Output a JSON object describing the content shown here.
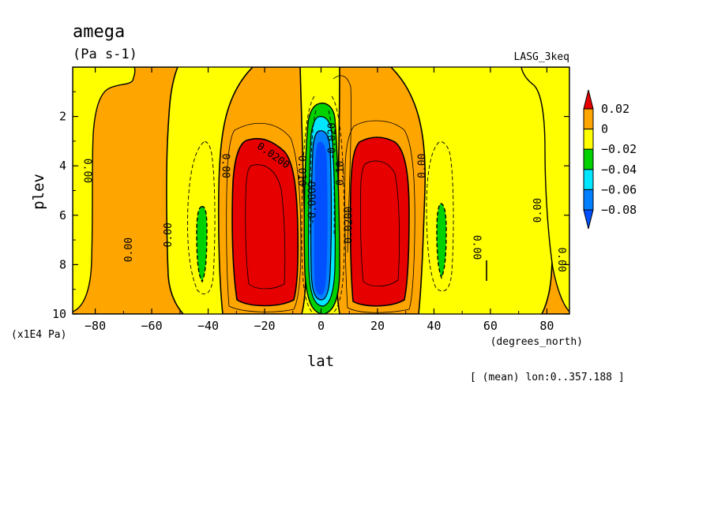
{
  "header": {
    "title": "amega",
    "units": "(Pa s-1)",
    "model": "LASG_3keq"
  },
  "footer": {
    "note": "[ (mean) lon:0..357.188 ]"
  },
  "chart_data": {
    "type": "heatmap",
    "title": "amega",
    "subtitle": "(Pa s-1)",
    "xlabel": "lat",
    "x_units": "(degrees_north)",
    "ylabel": "plev",
    "y_units": "(x1E4 Pa)",
    "xlim": [
      -88,
      88
    ],
    "ylim": [
      10,
      0
    ],
    "x_ticks": [
      -80,
      -60,
      -40,
      -20,
      0,
      20,
      40,
      60,
      80
    ],
    "y_ticks": [
      2,
      4,
      6,
      8,
      10
    ],
    "x_tick_labels": [
      "−80",
      "−60",
      "−40",
      "−20",
      "0",
      "20",
      "40",
      "60",
      "80"
    ],
    "y_tick_labels": [
      "2",
      "4",
      "6",
      "8",
      "10"
    ],
    "colorbar": {
      "levels": [
        0.02,
        0,
        -0.02,
        -0.04,
        -0.06,
        -0.08
      ],
      "level_labels": [
        "0.02",
        "0",
        "−0.02",
        "−0.04",
        "−0.06",
        "−0.08"
      ],
      "bins": [
        {
          "range": [
            0.02,
            null
          ],
          "color": "#e60000"
        },
        {
          "range": [
            0,
            0.02
          ],
          "color": "#ffa500"
        },
        {
          "range": [
            -0.02,
            0
          ],
          "color": "#ffff00"
        },
        {
          "range": [
            -0.04,
            -0.02
          ],
          "color": "#00d200"
        },
        {
          "range": [
            -0.06,
            -0.04
          ],
          "color": "#00e6ff"
        },
        {
          "range": [
            -0.08,
            -0.06
          ],
          "color": "#0080ff"
        },
        {
          "range": [
            null,
            -0.08
          ],
          "color": "#0050ff"
        }
      ]
    },
    "contour_labels": [
      {
        "text": "0.00",
        "lat": -83,
        "plev": 4.2,
        "rotate": 90
      },
      {
        "text": "0.00",
        "lat": -68,
        "plev": 7.4,
        "rotate": -90
      },
      {
        "text": "0.00",
        "lat": -54,
        "plev": 6.8,
        "rotate": -90
      },
      {
        "text": "0.00",
        "lat": -34,
        "plev": 4.0,
        "rotate": 90
      },
      {
        "text": "0.0200",
        "lat": -17,
        "plev": 3.6,
        "rotate": 35
      },
      {
        "text": "0.010",
        "lat": -7,
        "plev": 4.2,
        "rotate": 90
      },
      {
        "text": "-0.0600",
        "lat": -3,
        "plev": 5.5,
        "rotate": -90
      },
      {
        "text": "-0.020",
        "lat": 4,
        "plev": 3.0,
        "rotate": -90
      },
      {
        "text": "0.10",
        "lat": 7,
        "plev": 4.3,
        "rotate": -90
      },
      {
        "text": "0.0200",
        "lat": 10,
        "plev": 6.4,
        "rotate": -90
      },
      {
        "text": "0.00",
        "lat": 36,
        "plev": 4.0,
        "rotate": -90
      },
      {
        "text": "0.00",
        "lat": 55,
        "plev": 7.3,
        "rotate": 90
      },
      {
        "text": "0.00",
        "lat": 77,
        "plev": 5.8,
        "rotate": -90
      },
      {
        "text": "0.00",
        "lat": 85,
        "plev": 7.8,
        "rotate": 90
      }
    ]
  }
}
